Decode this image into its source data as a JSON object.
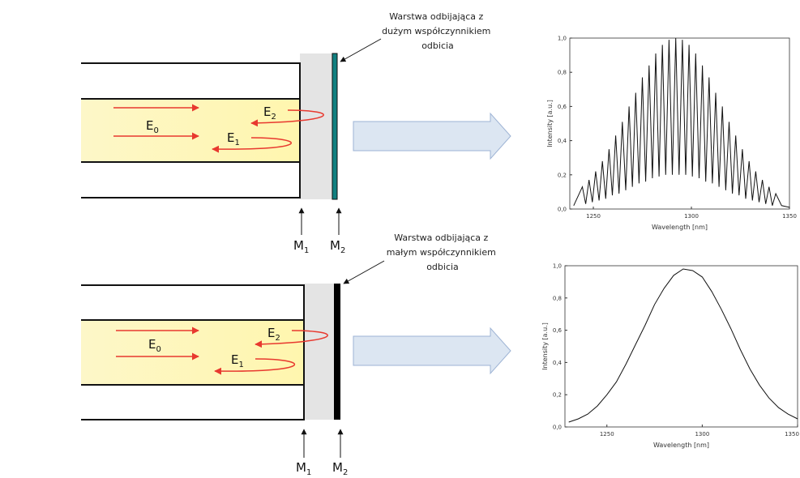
{
  "panels": [
    {
      "annotation": [
        "Warstwa odbijająca z",
        "dużym współczynnikiem",
        "odbicia"
      ],
      "fields": [
        {
          "name": "E",
          "sub": "0"
        },
        {
          "name": "E",
          "sub": "2"
        },
        {
          "name": "E",
          "sub": "1"
        }
      ],
      "mirrors": [
        {
          "name": "M",
          "sub": "1"
        },
        {
          "name": "M",
          "sub": "2"
        }
      ],
      "chart": {
        "type": "line",
        "xlabel": "Wavelength [nm]",
        "ylabel": "Intensity [a.u.]",
        "x": [
          1240,
          1244.4,
          1246.1,
          1247.8,
          1249.5,
          1251.2,
          1252.9,
          1254.6,
          1256.3,
          1258.0,
          1259.7,
          1261.4,
          1263.1,
          1264.8,
          1266.5,
          1268.2,
          1269.9,
          1271.6,
          1273.3,
          1275.0,
          1276.7,
          1278.4,
          1280.1,
          1281.8,
          1283.5,
          1285.2,
          1286.9,
          1288.6,
          1290.3,
          1292.0,
          1293.7,
          1295.4,
          1297.1,
          1298.8,
          1300.5,
          1302.2,
          1303.9,
          1305.6,
          1307.3,
          1309.0,
          1310.7,
          1312.4,
          1314.1,
          1315.8,
          1317.5,
          1319.2,
          1320.9,
          1322.6,
          1324.3,
          1326.0,
          1327.7,
          1329.4,
          1331.1,
          1332.8,
          1334.5,
          1336.2,
          1337.9,
          1339.6,
          1341.3,
          1343.0,
          1346,
          1350
        ],
        "values": [
          0.02,
          0.13,
          0.03,
          0.17,
          0.04,
          0.22,
          0.05,
          0.28,
          0.06,
          0.35,
          0.08,
          0.43,
          0.09,
          0.51,
          0.11,
          0.6,
          0.13,
          0.68,
          0.15,
          0.77,
          0.16,
          0.84,
          0.18,
          0.91,
          0.19,
          0.96,
          0.2,
          0.99,
          0.2,
          1.0,
          0.2,
          0.99,
          0.2,
          0.96,
          0.19,
          0.91,
          0.18,
          0.84,
          0.16,
          0.77,
          0.15,
          0.68,
          0.13,
          0.6,
          0.11,
          0.51,
          0.09,
          0.43,
          0.08,
          0.35,
          0.06,
          0.28,
          0.05,
          0.22,
          0.04,
          0.17,
          0.03,
          0.13,
          0.02,
          0.09,
          0.02,
          0.01
        ],
        "xlim": [
          1238,
          1350
        ],
        "ylim": [
          0,
          1
        ],
        "xticks": [
          1250,
          1300,
          1350
        ],
        "yticks": [
          {
            "value": 0,
            "label": "0,0"
          },
          {
            "value": 0.2,
            "label": "0,2"
          },
          {
            "value": 0.4,
            "label": "0,4"
          },
          {
            "value": 0.6,
            "label": "0,6"
          },
          {
            "value": 0.8,
            "label": "0,8"
          },
          {
            "value": 1,
            "label": "1,0"
          }
        ]
      }
    },
    {
      "annotation": [
        "Warstwa odbijająca z",
        "małym współczynnikiem",
        "odbicia"
      ],
      "fields": [
        {
          "name": "E",
          "sub": "0"
        },
        {
          "name": "E",
          "sub": "2"
        },
        {
          "name": "E",
          "sub": "1"
        }
      ],
      "mirrors": [
        {
          "name": "M",
          "sub": "1"
        },
        {
          "name": "M",
          "sub": "2"
        }
      ],
      "chart": {
        "type": "line",
        "xlabel": "Wavelength [nm]",
        "ylabel": "Intensity [a.u.]",
        "x": [
          1230,
          1235,
          1240,
          1245,
          1250,
          1255,
          1260,
          1265,
          1270,
          1275,
          1280,
          1285,
          1290,
          1295,
          1300,
          1305,
          1310,
          1315,
          1320,
          1325,
          1330,
          1335,
          1340,
          1345,
          1350
        ],
        "values": [
          0.03,
          0.05,
          0.08,
          0.13,
          0.2,
          0.28,
          0.39,
          0.51,
          0.63,
          0.76,
          0.86,
          0.94,
          0.98,
          0.97,
          0.93,
          0.84,
          0.73,
          0.61,
          0.48,
          0.36,
          0.26,
          0.18,
          0.12,
          0.08,
          0.05
        ],
        "xlim": [
          1228,
          1350
        ],
        "ylim": [
          0,
          1
        ],
        "xticks": [
          1250,
          1300,
          1350
        ],
        "yticks": [
          {
            "value": 0,
            "label": "0,0"
          },
          {
            "value": 0.2,
            "label": "0,2"
          },
          {
            "value": 0.4,
            "label": "0,4"
          },
          {
            "value": 0.6,
            "label": "0,6"
          },
          {
            "value": 0.8,
            "label": "0,8"
          },
          {
            "value": 1,
            "label": "1,0"
          }
        ]
      }
    }
  ]
}
